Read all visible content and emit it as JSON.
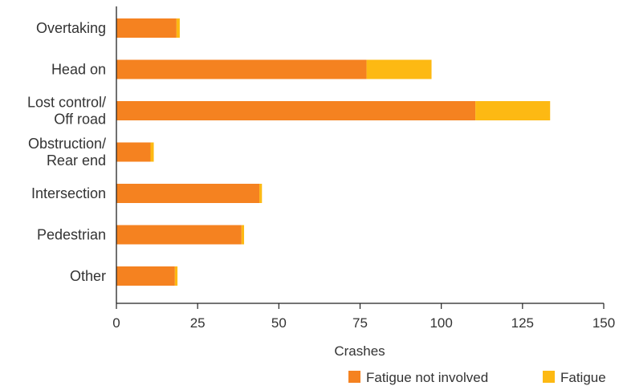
{
  "chart_data": {
    "type": "bar",
    "orientation": "horizontal",
    "stacked": true,
    "categories": [
      [
        "Overtaking"
      ],
      [
        "Head on"
      ],
      [
        "Lost control/",
        "Off road"
      ],
      [
        "Obstruction/",
        "Rear end"
      ],
      [
        "Intersection"
      ],
      [
        "Pedestrian"
      ],
      [
        "Other"
      ]
    ],
    "series": [
      {
        "name": "Fatigue not involved",
        "color": "#F58220",
        "values": [
          18.5,
          77,
          110.5,
          10.5,
          44,
          38.5,
          18
        ]
      },
      {
        "name": "Fatigue",
        "color": "#FDB913",
        "values": [
          1,
          20,
          23,
          1,
          0.8,
          0.8,
          0.8
        ]
      }
    ],
    "xlabel": "Crashes",
    "ylabel": "",
    "xlim": [
      0,
      150
    ],
    "xticks": [
      0,
      25,
      50,
      75,
      100,
      125,
      150
    ],
    "grid": false,
    "legend_position": "bottom-right"
  }
}
